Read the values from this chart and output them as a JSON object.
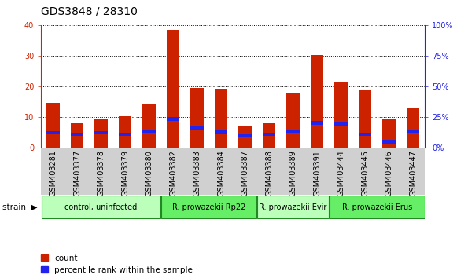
{
  "title": "GDS3848 / 28310",
  "samples": [
    "GSM403281",
    "GSM403377",
    "GSM403378",
    "GSM403379",
    "GSM403380",
    "GSM403382",
    "GSM403383",
    "GSM403384",
    "GSM403387",
    "GSM403388",
    "GSM403389",
    "GSM403391",
    "GSM403444",
    "GSM403445",
    "GSM403446",
    "GSM403447"
  ],
  "count_values": [
    14.5,
    8.0,
    9.5,
    10.3,
    14.0,
    38.5,
    19.5,
    19.2,
    6.8,
    8.2,
    17.8,
    30.2,
    21.5,
    18.8,
    9.5,
    13.0
  ],
  "percentile_values": [
    4.8,
    4.3,
    4.8,
    4.3,
    5.3,
    9.3,
    6.3,
    5.0,
    3.8,
    4.3,
    5.3,
    8.0,
    7.8,
    4.3,
    1.8,
    5.3
  ],
  "percentile_thickness": [
    1.2,
    1.2,
    1.2,
    1.2,
    1.2,
    1.2,
    1.2,
    1.2,
    1.2,
    1.2,
    1.2,
    1.2,
    1.2,
    1.2,
    1.2,
    1.2
  ],
  "groups": [
    {
      "label": "control, uninfected",
      "start": 0,
      "end": 4,
      "color": "#bbffbb"
    },
    {
      "label": "R. prowazekii Rp22",
      "start": 5,
      "end": 8,
      "color": "#66ee66"
    },
    {
      "label": "R. prowazekii Evir",
      "start": 9,
      "end": 11,
      "color": "#bbffbb"
    },
    {
      "label": "R. prowazekii Erus",
      "start": 12,
      "end": 15,
      "color": "#66ee66"
    }
  ],
  "bar_color_red": "#cc2200",
  "bar_color_blue": "#2222ee",
  "ylim_left": [
    0,
    40
  ],
  "ylim_right": [
    0,
    100
  ],
  "yticks_left": [
    0,
    10,
    20,
    30,
    40
  ],
  "yticks_right": [
    0,
    25,
    50,
    75,
    100
  ],
  "ylabel_left_color": "#cc2200",
  "ylabel_right_color": "#2222ee",
  "title_fontsize": 10,
  "tick_fontsize": 7,
  "legend_count_label": "count",
  "legend_percentile_label": "percentile rank within the sample",
  "strain_label": "strain",
  "bar_width": 0.55
}
